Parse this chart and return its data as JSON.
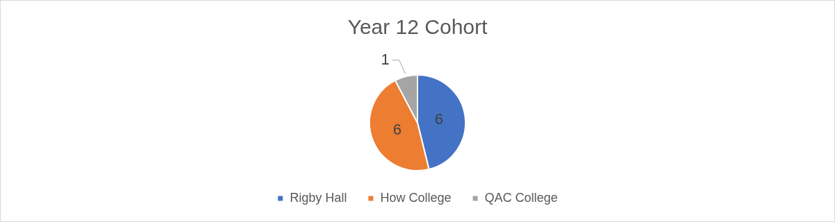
{
  "chart_data": {
    "type": "pie",
    "title": "Year 12 Cohort",
    "categories": [
      "Rigby Hall",
      "How College",
      "QAC College"
    ],
    "values": [
      6,
      6,
      1
    ],
    "colors": [
      "#4472c4",
      "#ed7d31",
      "#a5a5a5"
    ],
    "data_labels": true,
    "legend": "bottom"
  }
}
